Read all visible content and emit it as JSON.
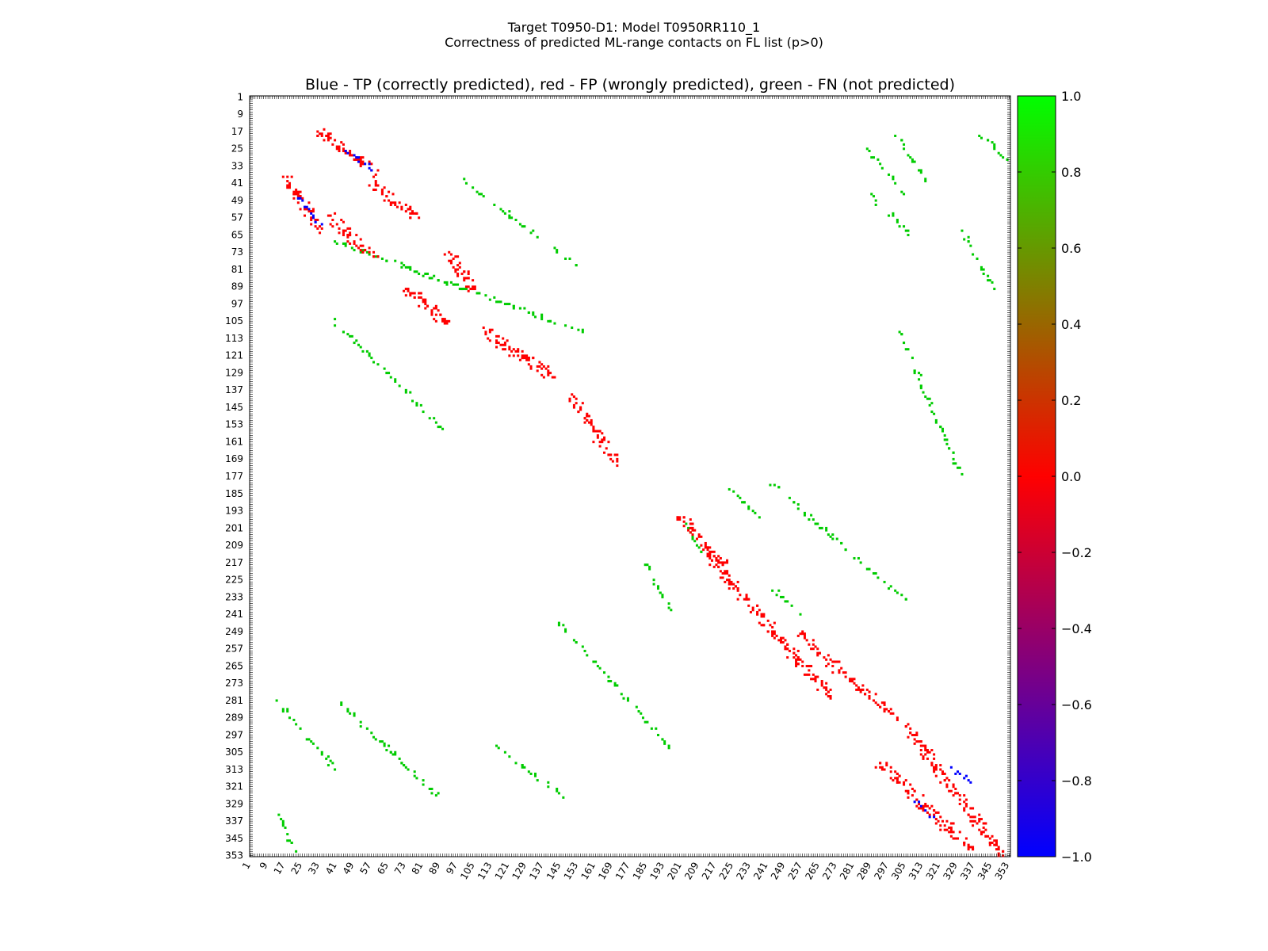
{
  "chart_data": {
    "type": "heatmap",
    "title_line1": "Target T0950-D1: Model T0950RR110_1",
    "title_line2": "Correctness of predicted ML-range contacts on FL list (p>0)",
    "subtitle": "Blue - TP (correctly predicted), red - FP (wrongly predicted), green - FN (not predicted)",
    "x_range": [
      1,
      353
    ],
    "y_range": [
      1,
      353
    ],
    "y_inverted": true,
    "tick_labels": [
      "1",
      "9",
      "17",
      "25",
      "33",
      "41",
      "49",
      "57",
      "65",
      "73",
      "81",
      "89",
      "97",
      "105",
      "113",
      "121",
      "129",
      "137",
      "145",
      "153",
      "161",
      "169",
      "177",
      "185",
      "193",
      "201",
      "209",
      "217",
      "225",
      "233",
      "241",
      "249",
      "257",
      "265",
      "273",
      "281",
      "289",
      "297",
      "305",
      "313",
      "321",
      "329",
      "337",
      "345",
      "353"
    ],
    "colorbar": {
      "min": -1.0,
      "max": 1.0,
      "ticks": [
        "1.0",
        "0.8",
        "0.6",
        "0.4",
        "0.2",
        "0.0",
        "−0.2",
        "−0.4",
        "−0.6",
        "−0.8",
        "−1.0"
      ],
      "stops": [
        {
          "value": -1.0,
          "color": "#0000ff"
        },
        {
          "value": 0.0,
          "color": "#ff0000"
        },
        {
          "value": 1.0,
          "color": "#00ff00"
        }
      ]
    },
    "categories": [
      {
        "code": -1,
        "color": "#0000ff"
      },
      {
        "code": 0,
        "color": "#ff0000"
      },
      {
        "code": 1,
        "color": "#00cc00"
      }
    ],
    "segments": [
      {
        "c": 1,
        "i": [
          68,
          110
        ],
        "j": [
          40,
          155
        ]
      },
      {
        "c": 1,
        "i": [
          40,
          80
        ],
        "j": [
          100,
          153
        ]
      },
      {
        "c": 1,
        "i": [
          105,
          155
        ],
        "j": [
          40,
          90
        ]
      },
      {
        "c": 1,
        "i": [
          280,
          312
        ],
        "j": [
          12,
          40
        ]
      },
      {
        "c": 1,
        "i": [
          282,
          306
        ],
        "j": [
          42,
          68
        ]
      },
      {
        "c": 1,
        "i": [
          300,
          325
        ],
        "j": [
          60,
          88
        ]
      },
      {
        "c": 1,
        "i": [
          334,
          353
        ],
        "j": [
          14,
          22
        ]
      },
      {
        "c": 1,
        "i": [
          300,
          325
        ],
        "j": [
          112,
          146
        ]
      },
      {
        "c": 1,
        "i": [
          245,
          303
        ],
        "j": [
          144,
          196
        ]
      },
      {
        "c": 1,
        "i": [
          217,
          240
        ],
        "j": [
          184,
          196
        ]
      },
      {
        "c": 1,
        "i": [
          178,
          235
        ],
        "j": [
          240,
          305
        ]
      },
      {
        "c": 1,
        "i": [
          110,
          176
        ],
        "j": [
          302,
          330
        ]
      },
      {
        "c": 1,
        "i": [
          183,
          196
        ],
        "j": [
          224,
          236
        ]
      },
      {
        "c": 1,
        "i": [
          230,
          240
        ],
        "j": [
          244,
          255
        ]
      },
      {
        "c": 1,
        "i": [
          200,
          212
        ],
        "j": [
          203,
          210
        ]
      },
      {
        "c": 1,
        "i": [
          20,
          45
        ],
        "j": [
          283,
          304
        ]
      },
      {
        "c": 1,
        "i": [
          45,
          68
        ],
        "j": [
          286,
          311
        ]
      },
      {
        "c": 1,
        "i": [
          18,
          40
        ],
        "j": [
          300,
          314
        ]
      },
      {
        "c": 1,
        "i": [
          62,
          90
        ],
        "j": [
          330,
          346
        ]
      },
      {
        "c": 1,
        "i": [
          18,
          30
        ],
        "j": [
          338,
          353
        ]
      },
      {
        "c": 0,
        "i": [
          17,
          35
        ],
        "j": [
          33,
          58
        ]
      },
      {
        "c": 0,
        "i": [
          38,
          62
        ],
        "j": [
          17,
          33
        ]
      },
      {
        "c": 0,
        "i": [
          40,
          57
        ],
        "j": [
          57,
          78
        ]
      },
      {
        "c": 0,
        "i": [
          57,
          75
        ],
        "j": [
          38,
          58
        ]
      },
      {
        "c": 0,
        "i": [
          74,
          90
        ],
        "j": [
          93,
          104
        ]
      },
      {
        "c": 0,
        "i": [
          90,
          106
        ],
        "j": [
          74,
          92
        ]
      },
      {
        "c": 0,
        "i": [
          110,
          130
        ],
        "j": [
          110,
          140
        ]
      },
      {
        "c": 0,
        "i": [
          140,
          170
        ],
        "j": [
          150,
          170
        ]
      },
      {
        "c": 0,
        "i": [
          195,
          220
        ],
        "j": [
          200,
          222
        ]
      },
      {
        "c": 0,
        "i": [
          212,
          280
        ],
        "j": [
          212,
          270
        ]
      },
      {
        "c": 0,
        "i": [
          250,
          290
        ],
        "j": [
          255,
          300
        ]
      },
      {
        "c": 0,
        "i": [
          293,
          353
        ],
        "j": [
          305,
          350
        ]
      },
      {
        "c": 0,
        "i": [
          310,
          350
        ],
        "j": [
          293,
          335
        ]
      },
      {
        "c": -1,
        "i": [
          25,
          35
        ],
        "j": [
          45,
          58
        ]
      },
      {
        "c": -1,
        "i": [
          47,
          60
        ],
        "j": [
          22,
          33
        ]
      },
      {
        "c": -1,
        "i": [
          312,
          318
        ],
        "j": [
          325,
          335
        ]
      },
      {
        "c": -1,
        "i": [
          328,
          336
        ],
        "j": [
          310,
          318
        ]
      }
    ]
  }
}
